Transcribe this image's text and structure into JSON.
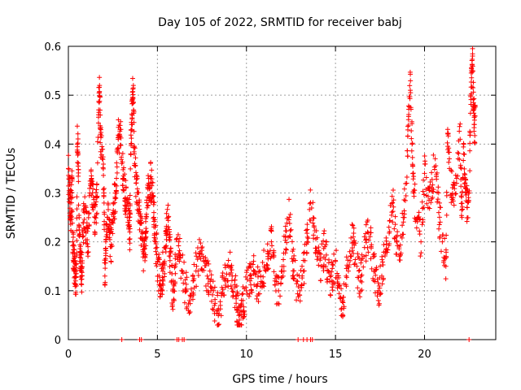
{
  "chart_data": {
    "type": "scatter",
    "title": "Day 105 of 2022, SRMTID for receiver babj",
    "xlabel": "GPS time / hours",
    "ylabel": "SRMTID / TECUs",
    "xlim": [
      0,
      24
    ],
    "ylim": [
      0,
      0.6
    ],
    "x_ticks": [
      0,
      5,
      10,
      15,
      20
    ],
    "x_tick_labels": [
      "0",
      "5",
      "10",
      "15",
      "20"
    ],
    "y_ticks": [
      0,
      0.1,
      0.2,
      0.3,
      0.4,
      0.5,
      0.6
    ],
    "y_tick_labels": [
      "0",
      "0.1",
      "0.2",
      "0.3",
      "0.4",
      "0.5",
      "0.6"
    ],
    "grid": true,
    "marker": "plus",
    "series": [
      {
        "name": "SRMTID",
        "color": "#ff0000",
        "points": [
          [
            0.0,
            0.35
          ],
          [
            0.05,
            0.3
          ],
          [
            0.1,
            0.28
          ],
          [
            0.15,
            0.25
          ],
          [
            0.2,
            0.33
          ],
          [
            0.25,
            0.2
          ],
          [
            0.3,
            0.16
          ],
          [
            0.35,
            0.14
          ],
          [
            0.4,
            0.12
          ],
          [
            0.45,
            0.11
          ],
          [
            0.5,
            0.4
          ],
          [
            0.55,
            0.38
          ],
          [
            0.6,
            0.23
          ],
          [
            0.65,
            0.18
          ],
          [
            0.7,
            0.15
          ],
          [
            0.75,
            0.13
          ],
          [
            0.8,
            0.21
          ],
          [
            0.9,
            0.26
          ],
          [
            1.0,
            0.23
          ],
          [
            1.1,
            0.19
          ],
          [
            1.2,
            0.3
          ],
          [
            1.3,
            0.33
          ],
          [
            1.4,
            0.27
          ],
          [
            1.5,
            0.25
          ],
          [
            1.6,
            0.29
          ],
          [
            1.7,
            0.47
          ],
          [
            1.75,
            0.52
          ],
          [
            1.8,
            0.42
          ],
          [
            1.9,
            0.37
          ],
          [
            2.0,
            0.3
          ],
          [
            2.05,
            0.13
          ],
          [
            2.1,
            0.2
          ],
          [
            2.2,
            0.25
          ],
          [
            2.3,
            0.22
          ],
          [
            2.4,
            0.19
          ],
          [
            2.5,
            0.26
          ],
          [
            2.6,
            0.28
          ],
          [
            2.7,
            0.33
          ],
          [
            2.8,
            0.41
          ],
          [
            2.9,
            0.43
          ],
          [
            3.0,
            0.36
          ],
          [
            3.1,
            0.33
          ],
          [
            3.2,
            0.29
          ],
          [
            3.3,
            0.28
          ],
          [
            3.4,
            0.25
          ],
          [
            3.45,
            0.22
          ],
          [
            3.5,
            0.38
          ],
          [
            3.55,
            0.44
          ],
          [
            3.6,
            0.49
          ],
          [
            3.65,
            0.52
          ],
          [
            3.7,
            0.38
          ],
          [
            3.8,
            0.32
          ],
          [
            3.9,
            0.28
          ],
          [
            4.0,
            0.24
          ],
          [
            4.1,
            0.22
          ],
          [
            4.2,
            0.18
          ],
          [
            4.3,
            0.17
          ],
          [
            4.35,
            0.21
          ],
          [
            4.4,
            0.28
          ],
          [
            4.5,
            0.32
          ],
          [
            4.6,
            0.33
          ],
          [
            4.7,
            0.3
          ],
          [
            4.8,
            0.26
          ],
          [
            4.9,
            0.2
          ],
          [
            5.0,
            0.16
          ],
          [
            5.1,
            0.13
          ],
          [
            5.2,
            0.11
          ],
          [
            5.3,
            0.14
          ],
          [
            5.4,
            0.16
          ],
          [
            5.5,
            0.22
          ],
          [
            5.6,
            0.25
          ],
          [
            5.7,
            0.18
          ],
          [
            5.8,
            0.12
          ],
          [
            5.9,
            0.08
          ],
          [
            6.0,
            0.15
          ],
          [
            6.2,
            0.2
          ],
          [
            6.4,
            0.14
          ],
          [
            6.6,
            0.1
          ],
          [
            6.8,
            0.08
          ],
          [
            7.0,
            0.12
          ],
          [
            7.2,
            0.15
          ],
          [
            7.4,
            0.18
          ],
          [
            7.6,
            0.16
          ],
          [
            7.8,
            0.13
          ],
          [
            8.0,
            0.1
          ],
          [
            8.2,
            0.07
          ],
          [
            8.4,
            0.06
          ],
          [
            8.6,
            0.09
          ],
          [
            8.8,
            0.12
          ],
          [
            9.0,
            0.15
          ],
          [
            9.2,
            0.13
          ],
          [
            9.4,
            0.09
          ],
          [
            9.5,
            0.06
          ],
          [
            9.6,
            0.04
          ],
          [
            9.7,
            0.05
          ],
          [
            9.8,
            0.08
          ],
          [
            10.0,
            0.1
          ],
          [
            10.2,
            0.12
          ],
          [
            10.4,
            0.14
          ],
          [
            10.6,
            0.11
          ],
          [
            10.8,
            0.13
          ],
          [
            11.0,
            0.15
          ],
          [
            11.2,
            0.17
          ],
          [
            11.4,
            0.2
          ],
          [
            11.6,
            0.12
          ],
          [
            11.8,
            0.1
          ],
          [
            12.0,
            0.14
          ],
          [
            12.2,
            0.21
          ],
          [
            12.4,
            0.25
          ],
          [
            12.6,
            0.16
          ],
          [
            12.8,
            0.12
          ],
          [
            13.0,
            0.1
          ],
          [
            13.2,
            0.14
          ],
          [
            13.4,
            0.2
          ],
          [
            13.6,
            0.28
          ],
          [
            13.8,
            0.23
          ],
          [
            14.0,
            0.17
          ],
          [
            14.2,
            0.15
          ],
          [
            14.4,
            0.19
          ],
          [
            14.6,
            0.14
          ],
          [
            14.8,
            0.12
          ],
          [
            15.0,
            0.16
          ],
          [
            15.2,
            0.11
          ],
          [
            15.4,
            0.08
          ],
          [
            15.6,
            0.13
          ],
          [
            15.8,
            0.18
          ],
          [
            16.0,
            0.21
          ],
          [
            16.2,
            0.15
          ],
          [
            16.4,
            0.12
          ],
          [
            16.6,
            0.17
          ],
          [
            16.8,
            0.22
          ],
          [
            17.0,
            0.19
          ],
          [
            17.2,
            0.14
          ],
          [
            17.4,
            0.1
          ],
          [
            17.6,
            0.13
          ],
          [
            17.8,
            0.18
          ],
          [
            18.0,
            0.23
          ],
          [
            18.2,
            0.28
          ],
          [
            18.4,
            0.21
          ],
          [
            18.6,
            0.17
          ],
          [
            18.8,
            0.25
          ],
          [
            19.0,
            0.32
          ],
          [
            19.1,
            0.45
          ],
          [
            19.2,
            0.51
          ],
          [
            19.3,
            0.4
          ],
          [
            19.4,
            0.3
          ],
          [
            19.6,
            0.25
          ],
          [
            19.8,
            0.2
          ],
          [
            20.0,
            0.34
          ],
          [
            20.2,
            0.27
          ],
          [
            20.4,
            0.31
          ],
          [
            20.6,
            0.37
          ],
          [
            20.8,
            0.26
          ],
          [
            21.0,
            0.2
          ],
          [
            21.2,
            0.15
          ],
          [
            21.3,
            0.43
          ],
          [
            21.4,
            0.35
          ],
          [
            21.6,
            0.29
          ],
          [
            21.8,
            0.33
          ],
          [
            22.0,
            0.41
          ],
          [
            22.1,
            0.25
          ],
          [
            22.2,
            0.38
          ],
          [
            22.3,
            0.31
          ],
          [
            22.4,
            0.27
          ],
          [
            22.5,
            0.3
          ],
          [
            22.6,
            0.5
          ],
          [
            22.65,
            0.55
          ],
          [
            22.7,
            0.58
          ],
          [
            22.75,
            0.47
          ],
          [
            22.8,
            0.44
          ]
        ]
      }
    ],
    "zero_points_x": [
      3.0,
      4.0,
      4.1,
      6.1,
      6.2,
      6.4,
      6.5,
      12.9,
      13.2,
      13.4,
      13.6,
      13.7,
      22.5
    ],
    "zero_points_y": 0
  }
}
